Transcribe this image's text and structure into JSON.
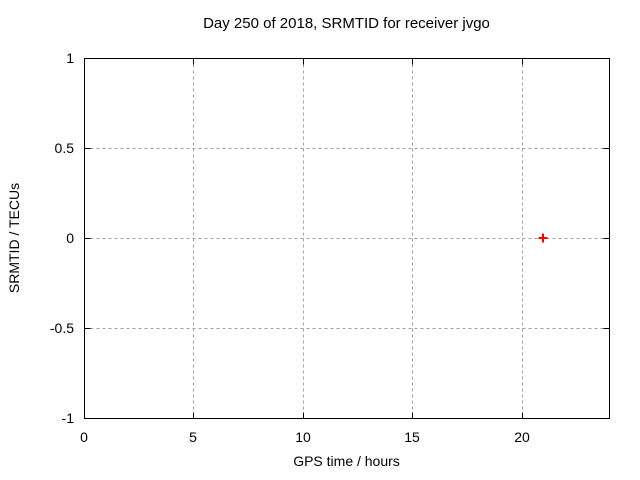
{
  "window": {
    "background": "#ffffff"
  },
  "chart_data": {
    "type": "scatter",
    "title": "Day 250 of 2018, SRMTID for receiver jvgo",
    "xlabel": "GPS time / hours",
    "ylabel": "SRMTID / TECUs",
    "xlim": [
      0,
      24
    ],
    "ylim": [
      -1,
      1
    ],
    "xticks": [
      0,
      5,
      10,
      15,
      20
    ],
    "yticks": [
      -1,
      -0.5,
      0,
      0.5,
      1
    ],
    "grid": true,
    "legend": "none",
    "axis_color": "#000000",
    "grid_color": "#a0a0a0",
    "series": [
      {
        "name": "",
        "marker": "plus",
        "color": "#ff0000",
        "points": [
          {
            "x": 21,
            "y": 0
          }
        ]
      }
    ]
  }
}
